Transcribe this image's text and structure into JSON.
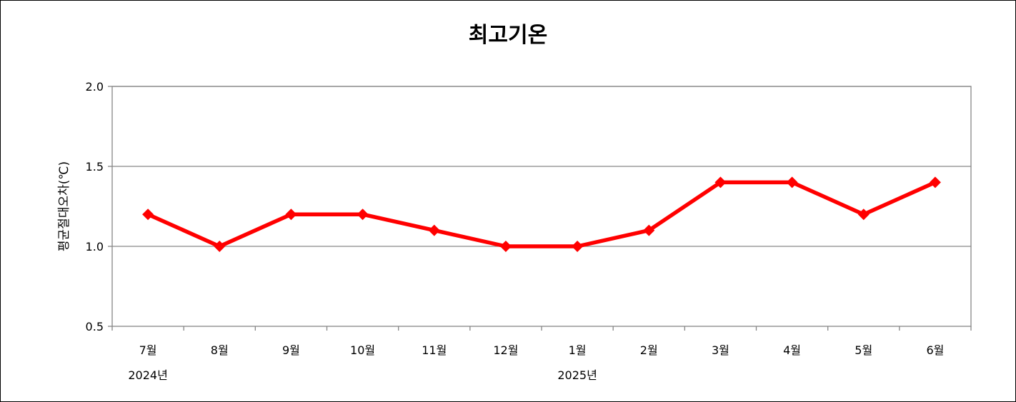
{
  "chart_data": {
    "type": "line",
    "title": "최고기온",
    "xlabel": "",
    "ylabel": "평균절대오차(℃)",
    "categories": [
      "7월",
      "8월",
      "9월",
      "10월",
      "11월",
      "12월",
      "1월",
      "2월",
      "3월",
      "4월",
      "5월",
      "6월"
    ],
    "year_groups": [
      {
        "label": "2024년",
        "start_index": 0
      },
      {
        "label": "2025년",
        "start_index": 6
      }
    ],
    "series": [
      {
        "values": [
          1.2,
          1.0,
          1.2,
          1.2,
          1.1,
          1.0,
          1.0,
          1.1,
          1.4,
          1.4,
          1.2,
          1.4
        ],
        "color": "#ff0000",
        "marker": "diamond"
      }
    ],
    "ylim": [
      0.5,
      2.0
    ],
    "yticks": [
      0.5,
      1.0,
      1.5,
      2.0
    ],
    "ytick_labels": [
      "0.5",
      "1.0",
      "1.5",
      "2.0"
    ],
    "grid": true,
    "gridlines": [
      1.0,
      1.5,
      2.0
    ],
    "legend": "none"
  }
}
